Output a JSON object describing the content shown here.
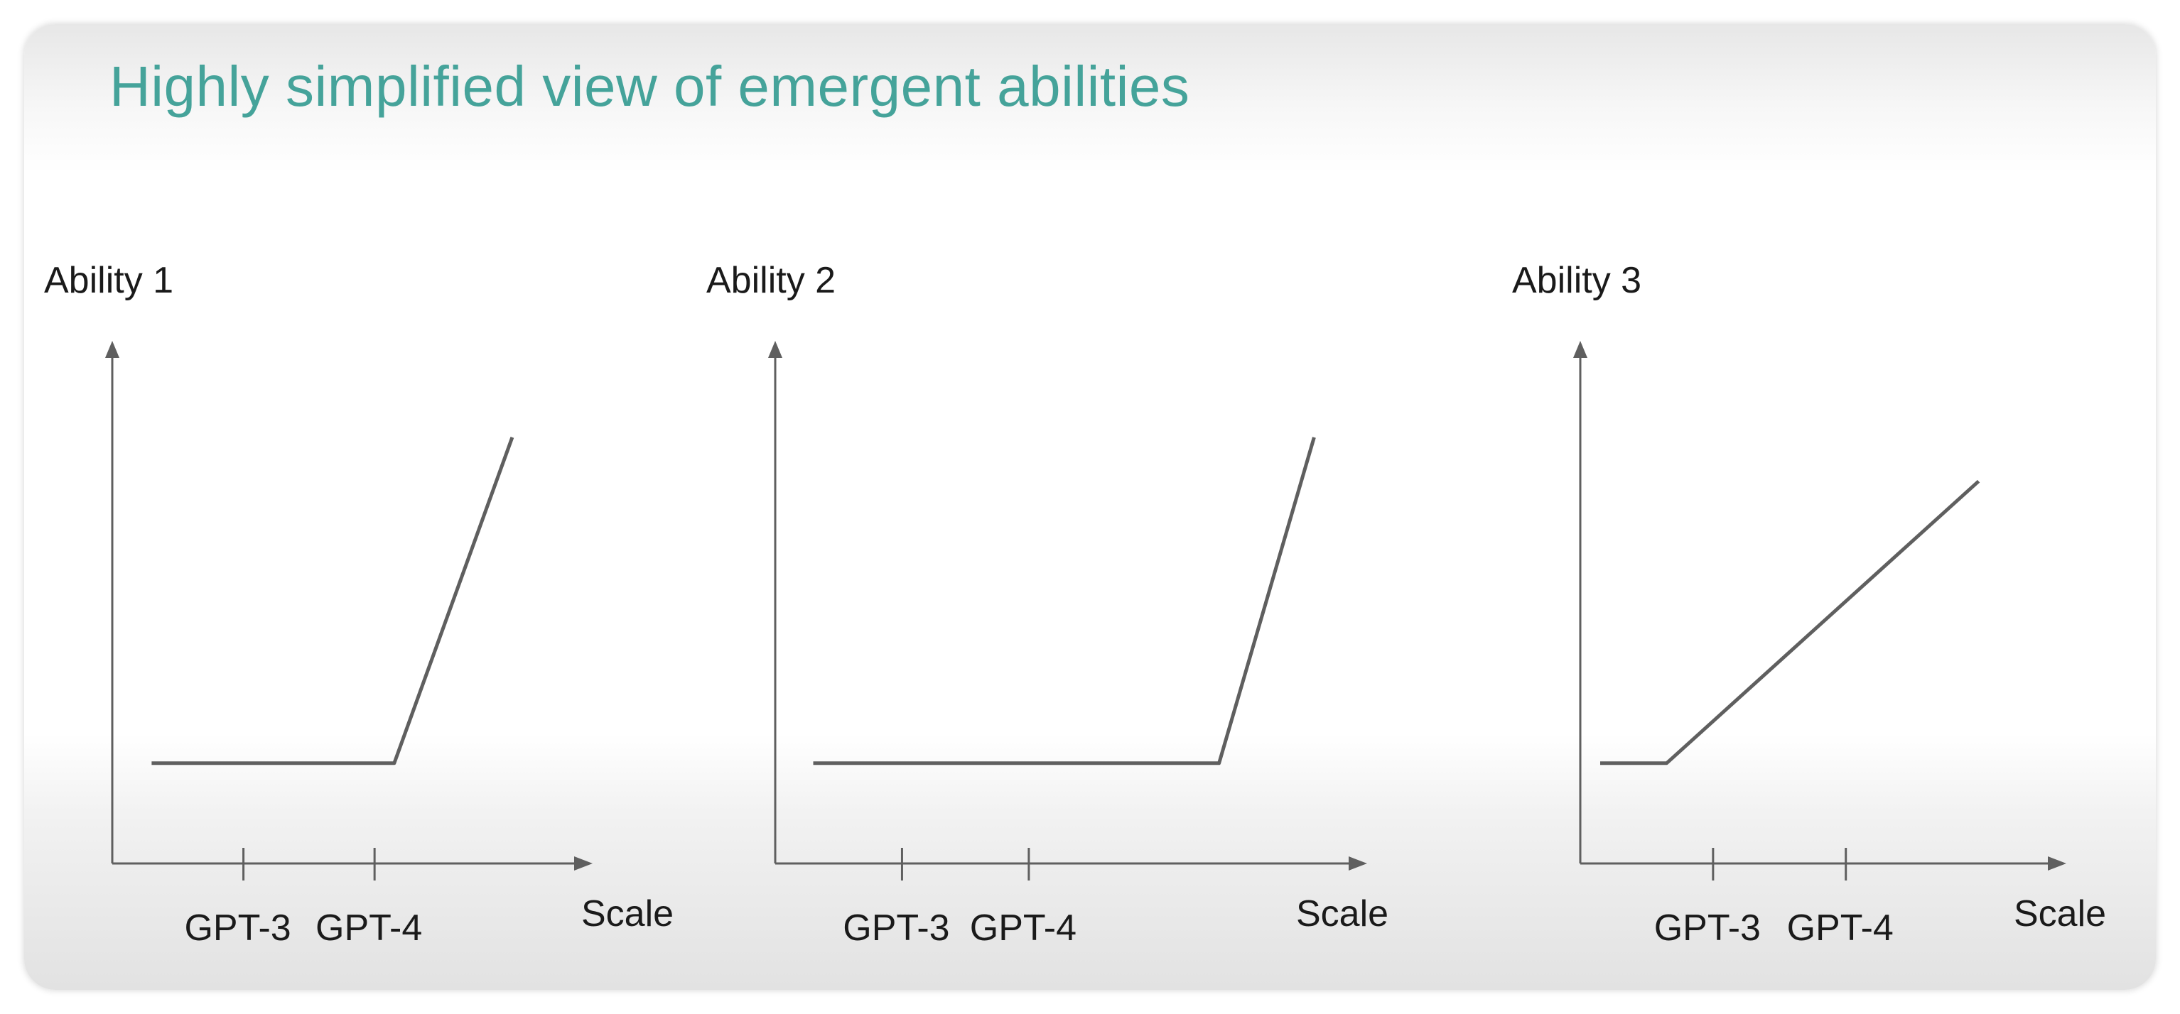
{
  "slide": {
    "title": "Highly simplified view of emergent abilities",
    "title_color": "#45a39a",
    "line_color": "#5f5f5f",
    "text_color": "#1a1a1a"
  },
  "chart_data": [
    {
      "type": "line",
      "title": "",
      "ylabel": "Ability 1",
      "xlabel": "Scale",
      "xticks": [
        "GPT-3",
        "GPT-4"
      ],
      "xtick_values": [
        2,
        4
      ],
      "xlim": [
        0,
        7
      ],
      "ylim": [
        0,
        8
      ],
      "grid": false,
      "series": [
        {
          "x": [
            0.6,
            4.3,
            6.1
          ],
          "y": [
            1.6,
            1.6,
            6.8
          ]
        }
      ]
    },
    {
      "type": "line",
      "title": "",
      "ylabel": "Ability 2",
      "xlabel": "Scale",
      "xticks": [
        "GPT-3",
        "GPT-4"
      ],
      "xtick_values": [
        2,
        4
      ],
      "xlim": [
        0,
        9
      ],
      "ylim": [
        0,
        8
      ],
      "grid": false,
      "series": [
        {
          "x": [
            0.6,
            7.0,
            8.5
          ],
          "y": [
            1.6,
            1.6,
            6.8
          ]
        }
      ]
    },
    {
      "type": "line",
      "title": "",
      "ylabel": "Ability 3",
      "xlabel": "Scale",
      "xticks": [
        "GPT-3",
        "GPT-4"
      ],
      "xtick_values": [
        2,
        4
      ],
      "xlim": [
        0,
        7
      ],
      "ylim": [
        0,
        8
      ],
      "grid": false,
      "series": [
        {
          "x": [
            0.3,
            1.3,
            6.0
          ],
          "y": [
            1.6,
            1.6,
            6.1
          ]
        }
      ]
    }
  ]
}
